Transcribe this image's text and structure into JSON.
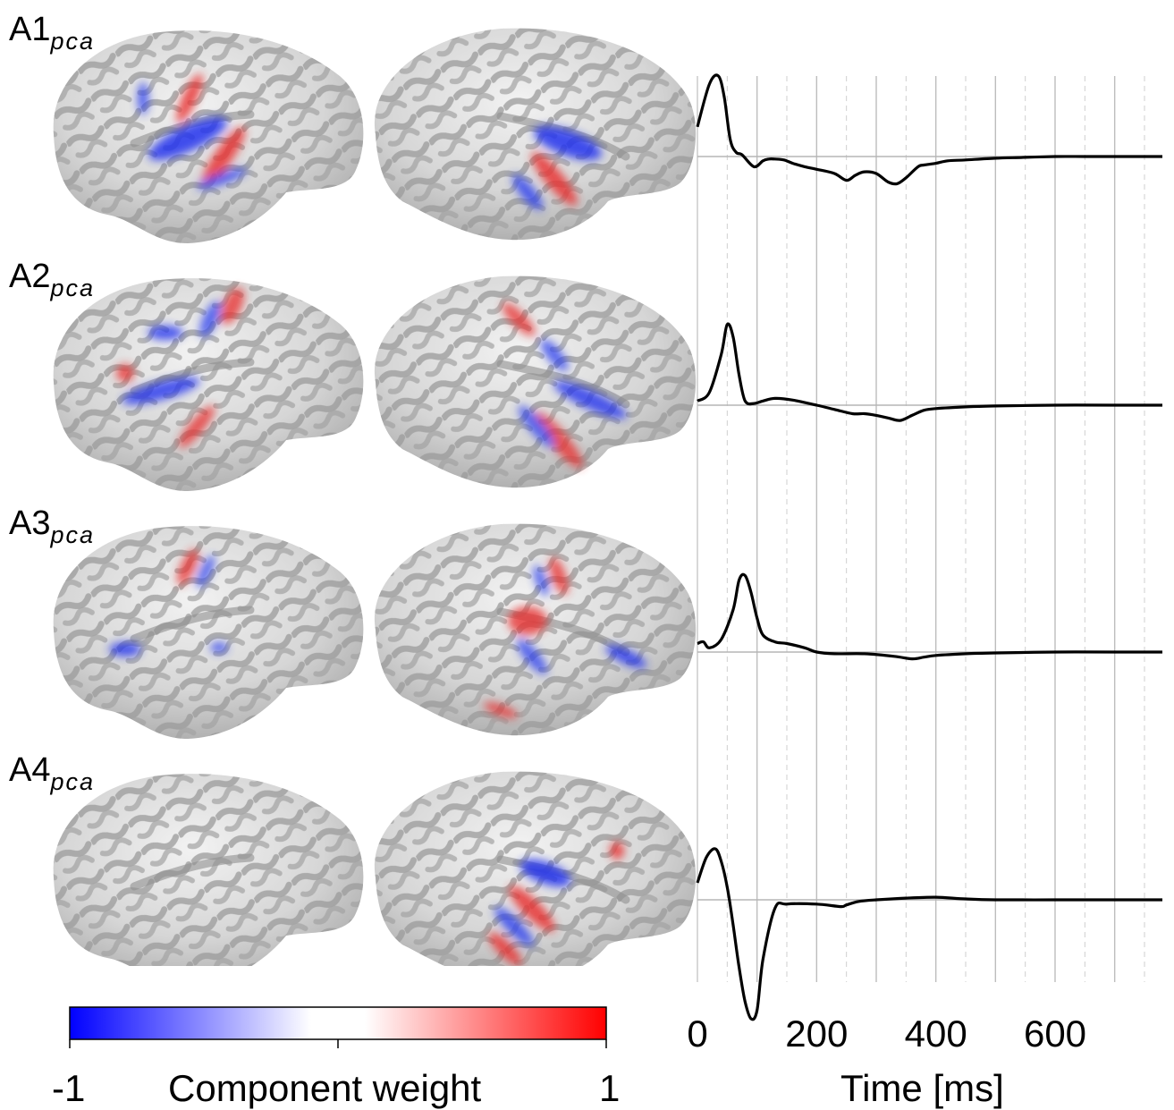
{
  "panels": [
    {
      "id": "A1",
      "label": "A1",
      "subscript": "pca"
    },
    {
      "id": "A2",
      "label": "A2",
      "subscript": "pca"
    },
    {
      "id": "A3",
      "label": "A3",
      "subscript": "pca"
    },
    {
      "id": "A4",
      "label": "A4",
      "subscript": "pca"
    }
  ],
  "colorbar": {
    "min_label": "-1",
    "max_label": "1",
    "title": "Component weight",
    "colors": {
      "negative": "#0000ff",
      "neutral": "#ffffff",
      "positive": "#ff0000"
    }
  },
  "chart_data": {
    "type": "line",
    "xlabel": "Time [ms]",
    "ylabel": "",
    "xlim": [
      0,
      780
    ],
    "xticks": [
      "0",
      "200",
      "400",
      "600"
    ],
    "grid": true,
    "series": [
      {
        "x": [
          0,
          20,
          35,
          45,
          55,
          65,
          75,
          95,
          110,
          120,
          130,
          145,
          160,
          180,
          200,
          230,
          250,
          265,
          280,
          300,
          320,
          335,
          350,
          370,
          380,
          400,
          420,
          450,
          500,
          550,
          600,
          650,
          700,
          780
        ],
        "y": [
          0.35,
          0.85,
          0.95,
          0.7,
          0.2,
          0.05,
          0.02,
          -0.12,
          -0.05,
          -0.03,
          -0.03,
          -0.04,
          -0.08,
          -0.12,
          -0.15,
          -0.2,
          -0.28,
          -0.22,
          -0.18,
          -0.2,
          -0.3,
          -0.32,
          -0.25,
          -0.12,
          -0.1,
          -0.08,
          -0.05,
          -0.04,
          -0.02,
          -0.01,
          0,
          0,
          0,
          0
        ]
      },
      {
        "x": [
          0,
          20,
          40,
          50,
          60,
          70,
          80,
          95,
          110,
          130,
          160,
          200,
          230,
          260,
          280,
          300,
          320,
          340,
          360,
          380,
          400,
          450,
          500,
          600,
          700,
          780
        ],
        "y": [
          0.05,
          0.15,
          0.6,
          0.95,
          0.8,
          0.35,
          0.05,
          0.02,
          0.05,
          0.08,
          0.06,
          0.0,
          -0.05,
          -0.1,
          -0.1,
          -0.12,
          -0.15,
          -0.18,
          -0.12,
          -0.06,
          -0.04,
          -0.02,
          -0.01,
          0,
          0,
          0
        ]
      },
      {
        "x": [
          0,
          10,
          20,
          40,
          60,
          70,
          80,
          90,
          100,
          110,
          130,
          150,
          180,
          200,
          230,
          280,
          330,
          360,
          380,
          400,
          450,
          500,
          600,
          700,
          780
        ],
        "y": [
          0.1,
          0.12,
          0.05,
          0.15,
          0.5,
          0.85,
          0.9,
          0.7,
          0.4,
          0.2,
          0.12,
          0.1,
          0.05,
          0.0,
          -0.02,
          -0.02,
          -0.05,
          -0.08,
          -0.06,
          -0.04,
          -0.02,
          -0.01,
          0,
          0,
          0
        ]
      },
      {
        "x": [
          0,
          15,
          30,
          40,
          50,
          60,
          70,
          80,
          90,
          100,
          110,
          130,
          150,
          200,
          240,
          250,
          270,
          300,
          350,
          400,
          450,
          500,
          600,
          700,
          780
        ],
        "y": [
          0.2,
          0.5,
          0.6,
          0.45,
          0.15,
          -0.3,
          -0.8,
          -1.2,
          -1.4,
          -1.3,
          -0.7,
          -0.1,
          -0.05,
          -0.05,
          -0.08,
          -0.06,
          -0.02,
          0.0,
          0.02,
          0.03,
          0.01,
          0.0,
          0,
          0,
          0
        ]
      }
    ]
  }
}
